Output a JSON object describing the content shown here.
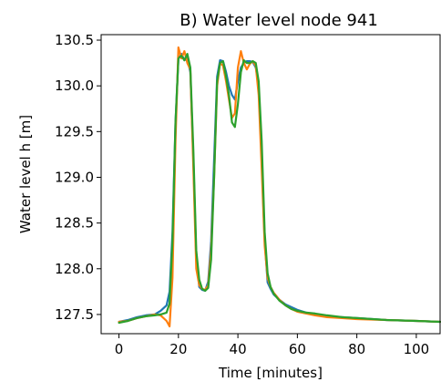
{
  "chart_data": {
    "type": "line",
    "title": "B) Water level node 941",
    "xlabel": "Time [minutes]",
    "ylabel": "Water level h [m]",
    "xlim": [
      -6,
      108
    ],
    "ylim": [
      127.29,
      130.56
    ],
    "xticks": [
      0,
      20,
      40,
      60,
      80,
      100
    ],
    "yticks": [
      127.5,
      128.0,
      128.5,
      129.0,
      129.5,
      130.0,
      130.5
    ],
    "ytick_labels": [
      "127.5",
      "128.0",
      "128.5",
      "129.0",
      "129.5",
      "130.0",
      "130.5"
    ],
    "grid": false,
    "legend": "none",
    "series": [
      {
        "color": "#1f77b4",
        "x": [
          0,
          3,
          6,
          9,
          12,
          14,
          16,
          17,
          18,
          19,
          20,
          21,
          22,
          23,
          24,
          25,
          26,
          27,
          28,
          29,
          30,
          31,
          32,
          33,
          34,
          35,
          36,
          37,
          38,
          39,
          40,
          41,
          42,
          43,
          44,
          45,
          46,
          47,
          48,
          49,
          50,
          51,
          52,
          54,
          56,
          58,
          60,
          63,
          66,
          70,
          75,
          80,
          90,
          100,
          108
        ],
        "y": [
          127.42,
          127.44,
          127.47,
          127.49,
          127.5,
          127.54,
          127.6,
          127.75,
          128.4,
          129.6,
          130.3,
          130.35,
          130.28,
          130.3,
          130.15,
          129.2,
          128.1,
          127.8,
          127.77,
          127.76,
          127.86,
          128.3,
          129.2,
          130.1,
          130.28,
          130.27,
          130.15,
          130.0,
          129.9,
          129.85,
          130.05,
          130.2,
          130.25,
          130.27,
          130.27,
          130.26,
          130.2,
          130.0,
          129.2,
          128.3,
          127.85,
          127.78,
          127.72,
          127.66,
          127.61,
          127.58,
          127.55,
          127.52,
          127.5,
          127.48,
          127.47,
          127.46,
          127.44,
          127.43,
          127.42
        ]
      },
      {
        "color": "#ff7f0e",
        "x": [
          0,
          3,
          6,
          9,
          12,
          14,
          16,
          17,
          18,
          19,
          20,
          21,
          22,
          23,
          24,
          25,
          26,
          27,
          28,
          29,
          30,
          31,
          32,
          33,
          34,
          35,
          36,
          37,
          38,
          39,
          40,
          41,
          42,
          43,
          44,
          45,
          46,
          47,
          48,
          49,
          50,
          51,
          52,
          54,
          56,
          58,
          60,
          63,
          66,
          70,
          75,
          80,
          90,
          100,
          108
        ],
        "y": [
          127.42,
          127.43,
          127.46,
          127.48,
          127.5,
          127.49,
          127.43,
          127.37,
          127.9,
          129.4,
          130.42,
          130.3,
          130.38,
          130.25,
          130.18,
          129.1,
          128.0,
          127.82,
          127.78,
          127.77,
          127.82,
          128.2,
          129.0,
          130.0,
          130.25,
          130.22,
          130.05,
          129.85,
          129.65,
          129.7,
          130.2,
          130.38,
          130.25,
          130.18,
          130.24,
          130.27,
          130.22,
          129.9,
          129.1,
          128.25,
          127.9,
          127.8,
          127.74,
          127.66,
          127.6,
          127.56,
          127.53,
          127.51,
          127.49,
          127.47,
          127.46,
          127.45,
          127.44,
          127.43,
          127.42
        ]
      },
      {
        "color": "#2ca02c",
        "x": [
          0,
          3,
          6,
          9,
          12,
          14,
          16,
          17,
          18,
          19,
          20,
          21,
          22,
          23,
          24,
          25,
          26,
          27,
          28,
          29,
          30,
          31,
          32,
          33,
          34,
          35,
          36,
          37,
          38,
          39,
          40,
          41,
          42,
          43,
          44,
          45,
          46,
          47,
          48,
          49,
          50,
          51,
          52,
          54,
          56,
          58,
          60,
          63,
          66,
          70,
          75,
          80,
          90,
          100,
          108
        ],
        "y": [
          127.41,
          127.43,
          127.46,
          127.48,
          127.49,
          127.5,
          127.52,
          127.62,
          128.3,
          129.6,
          130.3,
          130.33,
          130.28,
          130.35,
          130.2,
          129.3,
          128.2,
          127.88,
          127.78,
          127.76,
          127.79,
          128.1,
          129.0,
          130.05,
          130.25,
          130.27,
          130.1,
          129.9,
          129.6,
          129.55,
          129.8,
          130.15,
          130.28,
          130.25,
          130.25,
          130.27,
          130.25,
          130.05,
          129.4,
          128.4,
          127.95,
          127.8,
          127.73,
          127.65,
          127.6,
          127.56,
          127.54,
          127.52,
          127.51,
          127.49,
          127.47,
          127.46,
          127.44,
          127.43,
          127.42
        ]
      }
    ]
  }
}
